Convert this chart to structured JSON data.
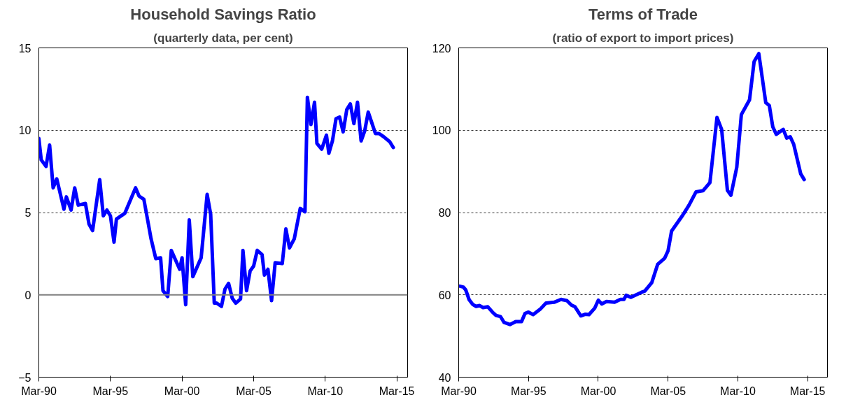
{
  "chart_data": [
    {
      "type": "line",
      "title": "Household Savings Ratio",
      "subtitle": "(quarterly data, per cent)",
      "x": [
        "1990-03",
        "1990-05",
        "1990-09",
        "1990-12",
        "1991-03",
        "1991-06",
        "1991-12",
        "1992-02",
        "1992-06",
        "1992-09",
        "1992-12",
        "1993-06",
        "1993-09",
        "1993-12",
        "1994-06",
        "1994-09",
        "1994-12",
        "1995-03",
        "1995-06",
        "1995-08",
        "1996-03",
        "1996-12",
        "1997-03",
        "1997-07",
        "1997-10",
        "1998-01",
        "1998-05",
        "1998-09",
        "1998-11",
        "1999-03",
        "1999-06",
        "2000-01",
        "2000-03",
        "2000-06",
        "2000-09",
        "2000-12",
        "2001-07",
        "2001-12",
        "2002-03",
        "2002-06",
        "2002-08",
        "2002-12",
        "2003-03",
        "2003-06",
        "2003-09",
        "2003-12",
        "2004-04",
        "2004-06",
        "2004-09",
        "2004-12",
        "2005-03",
        "2005-06",
        "2005-10",
        "2005-12",
        "2006-03",
        "2006-06",
        "2006-09",
        "2007-03",
        "2007-06",
        "2007-09",
        "2008-01",
        "2008-06",
        "2008-10",
        "2008-12",
        "2009-03",
        "2009-06",
        "2009-08",
        "2009-12",
        "2010-04",
        "2010-06",
        "2010-09",
        "2010-12",
        "2011-03",
        "2011-06",
        "2011-09",
        "2011-12",
        "2012-03",
        "2012-06",
        "2012-09",
        "2012-12",
        "2013-03",
        "2013-06",
        "2013-09",
        "2013-12",
        "2014-04",
        "2014-09",
        "2014-12"
      ],
      "series": [
        {
          "color": "#0000ff",
          "values": [
            9.5,
            8.2,
            7.8,
            9.1,
            6.5,
            7.05,
            5.2,
            5.95,
            5.15,
            6.5,
            5.45,
            5.55,
            4.3,
            3.9,
            7.0,
            4.8,
            5.15,
            4.8,
            3.2,
            4.6,
            4.95,
            6.5,
            6.0,
            5.8,
            4.6,
            3.4,
            2.2,
            2.25,
            0.25,
            -0.1,
            2.7,
            1.55,
            2.25,
            -0.6,
            4.55,
            1.1,
            2.25,
            6.1,
            4.9,
            -0.5,
            -0.5,
            -0.7,
            0.35,
            0.7,
            -0.2,
            -0.5,
            -0.25,
            2.7,
            0.25,
            1.45,
            1.75,
            2.7,
            2.45,
            1.2,
            1.55,
            -0.35,
            1.95,
            1.9,
            4.0,
            2.85,
            3.4,
            5.25,
            5.05,
            12.0,
            10.35,
            11.7,
            9.2,
            8.85,
            9.7,
            8.6,
            9.35,
            10.7,
            10.8,
            9.9,
            11.25,
            11.6,
            10.4,
            11.7,
            9.35,
            9.95,
            11.1,
            10.45,
            9.8,
            9.8,
            9.6,
            9.3,
            8.95
          ]
        }
      ],
      "xlim": [
        "1990-03",
        "2015-12"
      ],
      "xticks": [
        {
          "value": "1990-03",
          "label": "Mar-90"
        },
        {
          "value": "1995-03",
          "label": "Mar-95"
        },
        {
          "value": "2000-03",
          "label": "Mar-00"
        },
        {
          "value": "2005-03",
          "label": "Mar-05"
        },
        {
          "value": "2010-03",
          "label": "Mar-10"
        },
        {
          "value": "2015-03",
          "label": "Mar-15"
        }
      ],
      "ylim": [
        -5,
        15
      ],
      "yticks": [
        -5,
        0,
        5,
        10,
        15
      ],
      "grid": "y",
      "ref_lines": [
        {
          "axis": "y",
          "value": 0,
          "color": "#808080"
        }
      ]
    },
    {
      "type": "line",
      "title": "Terms of Trade",
      "subtitle": "(ratio of export to import prices)",
      "x": [
        "1990-04",
        "1990-07",
        "1990-09",
        "1990-12",
        "1991-03",
        "1991-06",
        "1991-09",
        "1991-12",
        "1992-04",
        "1992-08",
        "1992-11",
        "1993-03",
        "1993-06",
        "1993-11",
        "1994-04",
        "1994-09",
        "1994-12",
        "1995-03",
        "1995-07",
        "1996-01",
        "1996-06",
        "1997-01",
        "1997-07",
        "1997-12",
        "1998-04",
        "1998-07",
        "1998-12",
        "1999-04",
        "1999-07",
        "1999-12",
        "2000-03",
        "2000-06",
        "2000-10",
        "2001-05",
        "2001-10",
        "2002-01",
        "2002-03",
        "2002-07",
        "2003-04",
        "2003-07",
        "2004-01",
        "2004-06",
        "2004-12",
        "2005-03",
        "2005-06",
        "2006-03",
        "2006-09",
        "2007-03",
        "2007-09",
        "2008-03",
        "2008-09",
        "2009-01",
        "2009-06",
        "2009-09",
        "2010-02",
        "2010-06",
        "2011-01",
        "2011-05",
        "2011-09",
        "2012-03",
        "2012-06",
        "2012-09",
        "2012-12",
        "2013-06",
        "2013-09",
        "2013-12",
        "2014-03",
        "2014-09",
        "2014-12"
      ],
      "series": [
        {
          "color": "#0000ff",
          "values": [
            62.1,
            61.9,
            61.2,
            58.8,
            57.7,
            57.2,
            57.4,
            56.9,
            57.1,
            55.8,
            55.0,
            54.7,
            53.3,
            52.8,
            53.5,
            53.5,
            55.5,
            55.8,
            55.2,
            56.5,
            58.0,
            58.2,
            58.9,
            58.6,
            57.5,
            57.1,
            54.9,
            55.3,
            55.2,
            56.8,
            58.7,
            57.8,
            58.4,
            58.2,
            58.9,
            58.9,
            59.9,
            59.4,
            60.6,
            60.9,
            63.0,
            67.4,
            68.9,
            70.7,
            75.5,
            79.1,
            81.8,
            85.0,
            85.3,
            87.3,
            103.1,
            100.2,
            85.4,
            84.2,
            91.0,
            103.8,
            107.4,
            116.7,
            118.6,
            106.7,
            106.0,
            100.8,
            99.0,
            100.2,
            98.1,
            98.4,
            96.6,
            89.4,
            88.0
          ]
        }
      ],
      "xlim": [
        "1990-03",
        "2016-08"
      ],
      "xticks": [
        {
          "value": "1990-03",
          "label": "Mar-90"
        },
        {
          "value": "1995-03",
          "label": "Mar-95"
        },
        {
          "value": "2000-03",
          "label": "Mar-00"
        },
        {
          "value": "2005-03",
          "label": "Mar-05"
        },
        {
          "value": "2010-03",
          "label": "Mar-10"
        },
        {
          "value": "2015-03",
          "label": "Mar-15"
        }
      ],
      "ylim": [
        40,
        120
      ],
      "yticks": [
        40,
        60,
        80,
        100,
        120
      ],
      "grid": "y"
    }
  ]
}
